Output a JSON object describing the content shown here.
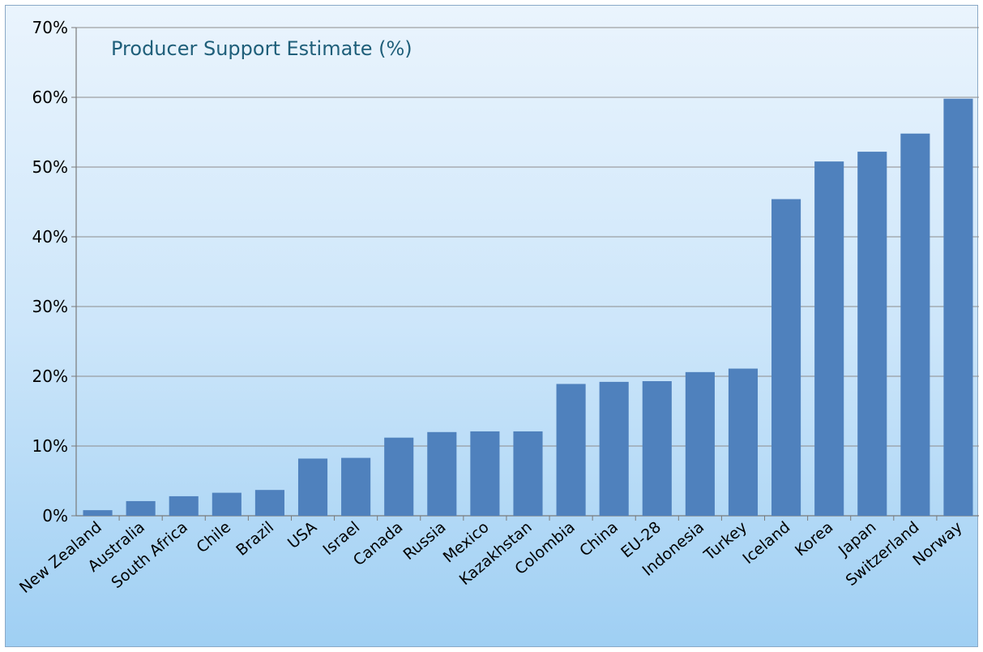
{
  "chart_data": {
    "type": "bar",
    "title": "Producer Support Estimate (%)",
    "xlabel": "",
    "ylabel": "",
    "ylim": [
      0,
      70
    ],
    "y_ticks": [
      "0%",
      "10%",
      "20%",
      "30%",
      "40%",
      "50%",
      "60%",
      "70%"
    ],
    "y_tick_values": [
      0,
      10,
      20,
      30,
      40,
      50,
      60,
      70
    ],
    "grid": true,
    "legend": "none",
    "bar_color": "#4f81bd",
    "categories": [
      "New Zealand",
      "Australia",
      "South Africa",
      "Chile",
      "Brazil",
      "USA",
      "Israel",
      "Canada",
      "Russia",
      "Mexico",
      "Kazakhstan",
      "Colombia",
      "China",
      "EU-28",
      "Indonesia",
      "Turkey",
      "Iceland",
      "Korea",
      "Japan",
      "Switzerland",
      "Norway"
    ],
    "values": [
      0.8,
      2.1,
      2.8,
      3.3,
      3.7,
      8.2,
      8.3,
      11.2,
      12.0,
      12.1,
      12.1,
      18.9,
      19.2,
      19.3,
      20.6,
      21.1,
      45.4,
      50.8,
      52.2,
      54.8,
      59.8
    ]
  }
}
